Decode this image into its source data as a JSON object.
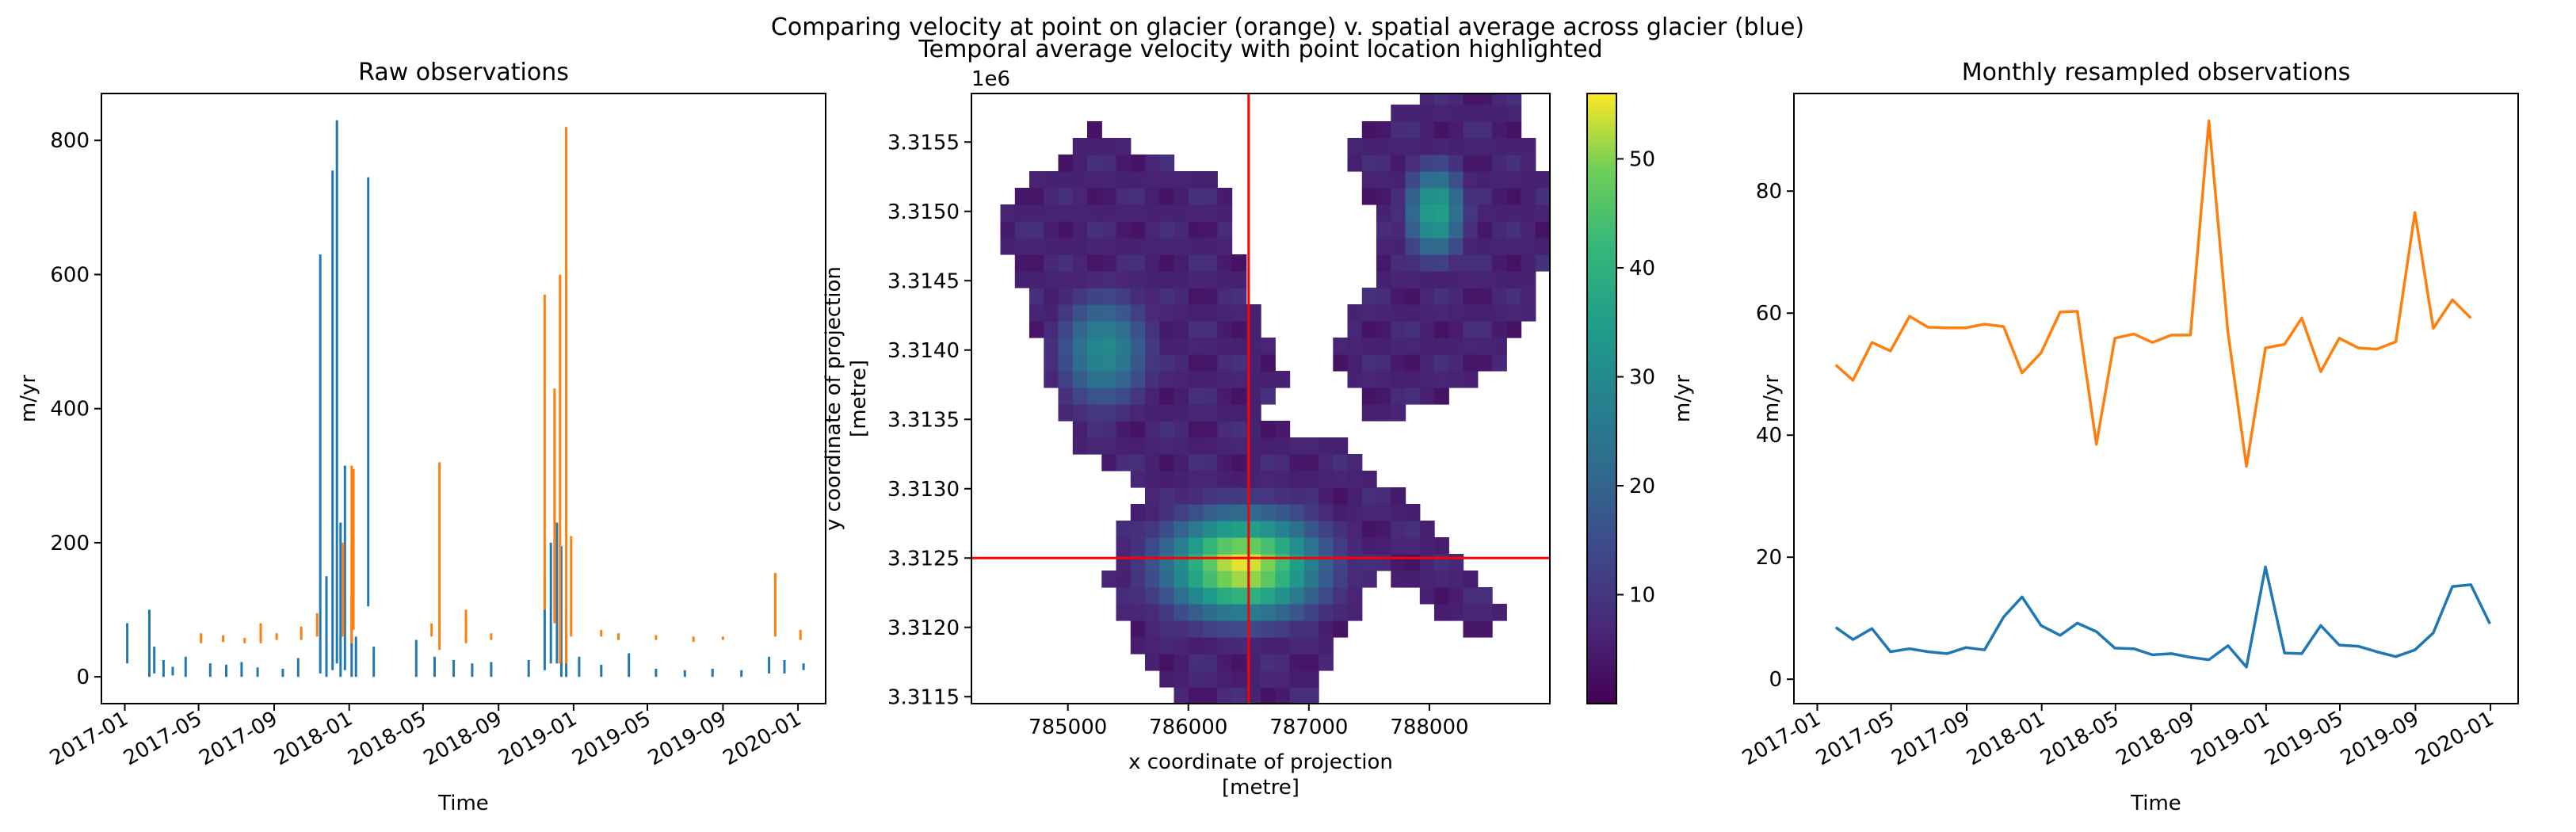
{
  "figure": {
    "suptitle": "Comparing velocity at point on glacier (orange) v. spatial average across glacier (blue)"
  },
  "colors": {
    "spatial_average": "#1f77b4",
    "point": "#ff7f0e",
    "crosshair": "#ff0000"
  },
  "chart_data": [
    {
      "id": "raw",
      "type": "line",
      "title": "Raw observations",
      "xlabel": "Time",
      "ylabel": "m/yr",
      "x_ticklabels": [
        "2017-01",
        "2017-05",
        "2017-09",
        "2018-01",
        "2018-05",
        "2018-09",
        "2019-01",
        "2019-05",
        "2019-09",
        "2020-01"
      ],
      "y_ticklabels": [
        "0",
        "200",
        "400",
        "600",
        "800"
      ],
      "ylim": [
        -40,
        870
      ],
      "xlim": [
        "2016-11-24",
        "2020-02-15"
      ],
      "note_series": "blue = spatial average across glacier, orange = point on glacier",
      "series": [
        {
          "color": "#1f77b4",
          "segments": [
            [
              [
                "2017-01-05",
                20
              ],
              [
                "2017-01-05",
                80
              ]
            ],
            [
              [
                "2017-02-10",
                0
              ],
              [
                "2017-02-10",
                100
              ]
            ],
            [
              [
                "2017-02-18",
                5
              ],
              [
                "2017-02-18",
                45
              ]
            ],
            [
              [
                "2017-03-05",
                0
              ],
              [
                "2017-03-05",
                25
              ]
            ],
            [
              [
                "2017-03-20",
                2
              ],
              [
                "2017-03-20",
                15
              ]
            ],
            [
              [
                "2017-04-10",
                0
              ],
              [
                "2017-04-10",
                30
              ]
            ],
            [
              [
                "2017-05-20",
                0
              ],
              [
                "2017-05-20",
                20
              ]
            ],
            [
              [
                "2017-06-15",
                0
              ],
              [
                "2017-06-15",
                18
              ]
            ],
            [
              [
                "2017-07-10",
                0
              ],
              [
                "2017-07-10",
                22
              ]
            ],
            [
              [
                "2017-08-05",
                0
              ],
              [
                "2017-08-05",
                14
              ]
            ],
            [
              [
                "2017-09-15",
                0
              ],
              [
                "2017-09-15",
                12
              ]
            ],
            [
              [
                "2017-10-10",
                0
              ],
              [
                "2017-10-10",
                28
              ]
            ],
            [
              [
                "2017-11-15",
                5
              ],
              [
                "2017-11-15",
                630
              ]
            ],
            [
              [
                "2017-11-25",
                0
              ],
              [
                "2017-11-25",
                150
              ]
            ],
            [
              [
                "2017-12-05",
                10
              ],
              [
                "2017-12-05",
                755
              ]
            ],
            [
              [
                "2017-12-12",
                20
              ],
              [
                "2017-12-12",
                830
              ]
            ],
            [
              [
                "2017-12-18",
                0
              ],
              [
                "2017-12-18",
                230
              ]
            ],
            [
              [
                "2017-12-25",
                10
              ],
              [
                "2017-12-25",
                315
              ]
            ],
            [
              [
                "2018-01-05",
                0
              ],
              [
                "2018-01-05",
                120
              ]
            ],
            [
              [
                "2018-01-12",
                0
              ],
              [
                "2018-01-12",
                60
              ]
            ],
            [
              [
                "2018-02-01",
                105
              ],
              [
                "2018-02-01",
                745
              ]
            ],
            [
              [
                "2018-02-10",
                0
              ],
              [
                "2018-02-10",
                45
              ]
            ],
            [
              [
                "2018-04-20",
                0
              ],
              [
                "2018-04-20",
                55
              ]
            ],
            [
              [
                "2018-05-20",
                0
              ],
              [
                "2018-05-20",
                30
              ]
            ],
            [
              [
                "2018-06-20",
                0
              ],
              [
                "2018-06-20",
                25
              ]
            ],
            [
              [
                "2018-07-20",
                0
              ],
              [
                "2018-07-20",
                20
              ]
            ],
            [
              [
                "2018-08-20",
                0
              ],
              [
                "2018-08-20",
                22
              ]
            ],
            [
              [
                "2018-10-20",
                0
              ],
              [
                "2018-10-20",
                25
              ]
            ],
            [
              [
                "2018-11-15",
                10
              ],
              [
                "2018-11-15",
                150
              ]
            ],
            [
              [
                "2018-11-25",
                20
              ],
              [
                "2018-11-25",
                200
              ]
            ],
            [
              [
                "2018-12-05",
                20
              ],
              [
                "2018-12-05",
                230
              ]
            ],
            [
              [
                "2018-12-12",
                0
              ],
              [
                "2018-12-12",
                195
              ]
            ],
            [
              [
                "2018-12-20",
                0
              ],
              [
                "2018-12-20",
                100
              ]
            ],
            [
              [
                "2019-01-10",
                0
              ],
              [
                "2019-01-10",
                30
              ]
            ],
            [
              [
                "2019-02-15",
                0
              ],
              [
                "2019-02-15",
                18
              ]
            ],
            [
              [
                "2019-04-01",
                0
              ],
              [
                "2019-04-01",
                35
              ]
            ],
            [
              [
                "2019-05-15",
                0
              ],
              [
                "2019-05-15",
                12
              ]
            ],
            [
              [
                "2019-07-01",
                0
              ],
              [
                "2019-07-01",
                10
              ]
            ],
            [
              [
                "2019-08-15",
                0
              ],
              [
                "2019-08-15",
                12
              ]
            ],
            [
              [
                "2019-10-01",
                0
              ],
              [
                "2019-10-01",
                10
              ]
            ],
            [
              [
                "2019-11-15",
                5
              ],
              [
                "2019-11-15",
                30
              ]
            ],
            [
              [
                "2019-12-10",
                5
              ],
              [
                "2019-12-10",
                25
              ]
            ],
            [
              [
                "2020-01-10",
                10
              ],
              [
                "2020-01-10",
                20
              ]
            ]
          ]
        },
        {
          "color": "#ff7f0e",
          "segments": [
            [
              [
                "2017-05-05",
                50
              ],
              [
                "2017-05-05",
                65
              ]
            ],
            [
              [
                "2017-06-10",
                52
              ],
              [
                "2017-06-10",
                62
              ]
            ],
            [
              [
                "2017-07-15",
                50
              ],
              [
                "2017-07-15",
                58
              ]
            ],
            [
              [
                "2017-08-10",
                50
              ],
              [
                "2017-08-10",
                80
              ]
            ],
            [
              [
                "2017-09-05",
                55
              ],
              [
                "2017-09-05",
                65
              ]
            ],
            [
              [
                "2017-10-15",
                55
              ],
              [
                "2017-10-15",
                75
              ]
            ],
            [
              [
                "2017-11-10",
                60
              ],
              [
                "2017-11-10",
                95
              ]
            ],
            [
              [
                "2017-12-22",
                60
              ],
              [
                "2017-12-22",
                200
              ]
            ],
            [
              [
                "2018-01-05",
                50
              ],
              [
                "2018-01-05",
                315
              ]
            ],
            [
              [
                "2018-01-08",
                70
              ],
              [
                "2018-01-08",
                310
              ]
            ],
            [
              [
                "2018-05-15",
                60
              ],
              [
                "2018-05-15",
                80
              ]
            ],
            [
              [
                "2018-05-28",
                40
              ],
              [
                "2018-05-28",
                320
              ]
            ],
            [
              [
                "2018-07-10",
                50
              ],
              [
                "2018-07-10",
                100
              ]
            ],
            [
              [
                "2018-08-20",
                55
              ],
              [
                "2018-08-20",
                65
              ]
            ],
            [
              [
                "2018-11-15",
                100
              ],
              [
                "2018-11-15",
                570
              ]
            ],
            [
              [
                "2018-12-01",
                80
              ],
              [
                "2018-12-01",
                430
              ]
            ],
            [
              [
                "2018-12-10",
                20
              ],
              [
                "2018-12-10",
                600
              ]
            ],
            [
              [
                "2018-12-20",
                20
              ],
              [
                "2018-12-20",
                820
              ]
            ],
            [
              [
                "2018-12-28",
                60
              ],
              [
                "2018-12-28",
                210
              ]
            ],
            [
              [
                "2019-02-15",
                60
              ],
              [
                "2019-02-15",
                70
              ]
            ],
            [
              [
                "2019-03-15",
                55
              ],
              [
                "2019-03-15",
                65
              ]
            ],
            [
              [
                "2019-05-15",
                55
              ],
              [
                "2019-05-15",
                62
              ]
            ],
            [
              [
                "2019-07-15",
                52
              ],
              [
                "2019-07-15",
                60
              ]
            ],
            [
              [
                "2019-09-01",
                55
              ],
              [
                "2019-09-01",
                60
              ]
            ],
            [
              [
                "2019-11-25",
                60
              ],
              [
                "2019-11-25",
                155
              ]
            ],
            [
              [
                "2020-01-05",
                55
              ],
              [
                "2020-01-05",
                70
              ]
            ]
          ]
        }
      ]
    },
    {
      "id": "map",
      "type": "heatmap",
      "title": "Temporal average velocity with point location highlighted",
      "xlabel": "x coordinate of projection\n[metre]",
      "ylabel": "y coordinate of projection\n[metre]",
      "y_offset_label": "1e6",
      "x_ticklabels": [
        "785000",
        "786000",
        "787000",
        "788000"
      ],
      "y_ticklabels": [
        "3.3115",
        "3.3120",
        "3.3125",
        "3.3130",
        "3.3135",
        "3.3140",
        "3.3145",
        "3.3150",
        "3.3155"
      ],
      "xlim": [
        784200,
        789000
      ],
      "ylim": [
        3311450,
        3315850
      ],
      "colormap": "viridis",
      "colorbar": {
        "label": "m/yr",
        "ticklabels": [
          "10",
          "20",
          "30",
          "40",
          "50"
        ],
        "range": [
          0,
          56
        ]
      },
      "point": {
        "x": 786500,
        "y": 3312500
      },
      "blobs": [
        {
          "name": "central-lower-hotspot",
          "x": 786450,
          "y": 3312450,
          "rx": 850,
          "ry": 500,
          "peak": 55
        },
        {
          "name": "western-arm",
          "x": 785300,
          "y": 3314000,
          "rx": 500,
          "ry": 550,
          "peak": 30
        },
        {
          "name": "northeast-arm",
          "x": 788050,
          "y": 3315000,
          "rx": 320,
          "ry": 450,
          "peak": 37
        }
      ]
    },
    {
      "id": "monthly",
      "type": "line",
      "title": "Monthly resampled observations",
      "xlabel": "Time",
      "ylabel": "m/yr",
      "x_ticklabels": [
        "2017-01",
        "2017-05",
        "2017-09",
        "2018-01",
        "2018-05",
        "2018-09",
        "2019-01",
        "2019-05",
        "2019-09",
        "2020-01"
      ],
      "y_ticklabels": [
        "0",
        "20",
        "40",
        "60",
        "80"
      ],
      "ylim": [
        -4,
        96
      ],
      "xlim": [
        "2016-11-24",
        "2020-02-15"
      ],
      "x": [
        "2017-01-31",
        "2017-02-28",
        "2017-03-31",
        "2017-04-30",
        "2017-05-31",
        "2017-06-30",
        "2017-07-31",
        "2017-08-31",
        "2017-09-30",
        "2017-10-31",
        "2017-11-30",
        "2017-12-31",
        "2018-01-31",
        "2018-02-28",
        "2018-03-31",
        "2018-04-30",
        "2018-05-31",
        "2018-06-30",
        "2018-07-31",
        "2018-08-31",
        "2018-09-30",
        "2018-10-31",
        "2018-11-30",
        "2018-12-31",
        "2019-01-31",
        "2019-02-28",
        "2019-03-31",
        "2019-04-30",
        "2019-05-31",
        "2019-06-30",
        "2019-07-31",
        "2019-08-31",
        "2019-09-30",
        "2019-10-31",
        "2019-11-30",
        "2019-12-31"
      ],
      "series": [
        {
          "color": "#ff7f0e",
          "values": [
            51.5,
            49,
            55.2,
            53.8,
            59.5,
            57.7,
            57.6,
            57.6,
            58.2,
            57.8,
            50.2,
            53.5,
            60.2,
            60.3,
            38.5,
            55.9,
            56.6,
            55.2,
            56.4,
            56.4,
            91.5,
            56.8,
            34.9,
            54.3,
            54.9,
            59.2,
            50.4,
            55.9,
            54.3,
            54.1,
            55.3,
            76.5,
            57.5,
            62.2,
            59.2,
            null
          ]
        },
        {
          "color": "#1f77b4",
          "values": [
            8.5,
            6.5,
            8.3,
            4.5,
            5,
            4.5,
            4.2,
            5.2,
            4.8,
            10.2,
            13.5,
            8.8,
            7.2,
            9.2,
            7.8,
            5.1,
            5,
            4,
            4.2,
            3.6,
            3.2,
            5.5,
            2,
            18.4,
            4.3,
            4.2,
            8.8,
            5.6,
            5.4,
            4.5,
            3.7,
            4.8,
            7.6,
            15.2,
            15.5,
            9.1
          ]
        }
      ]
    }
  ]
}
